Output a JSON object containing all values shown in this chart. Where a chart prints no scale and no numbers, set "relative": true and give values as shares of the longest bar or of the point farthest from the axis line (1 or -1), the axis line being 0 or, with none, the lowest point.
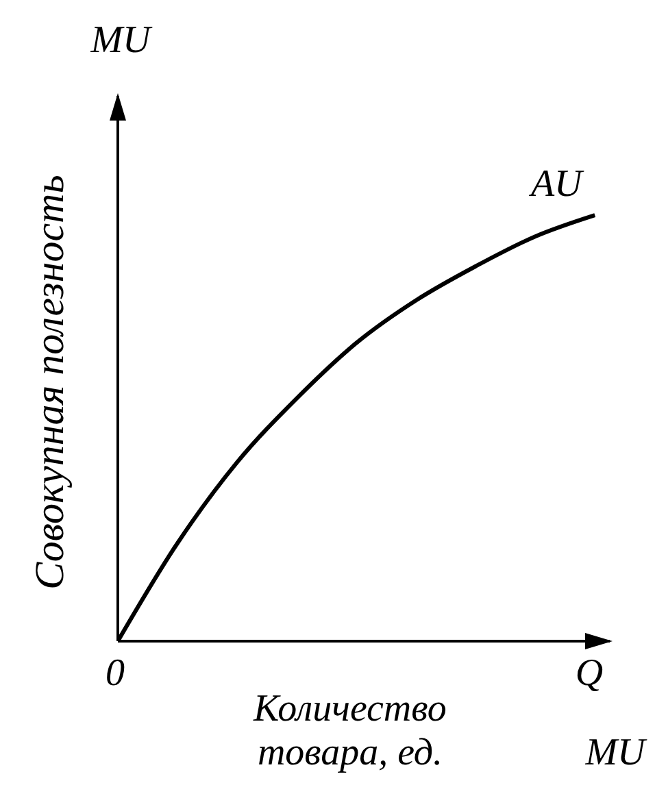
{
  "chart_data": {
    "type": "line",
    "relative": true,
    "ylabel": "Совокупная полезность",
    "xlabel": "Количество товара, ед.",
    "categories": [
      null,
      null,
      null,
      null,
      null,
      null,
      null,
      null,
      null
    ],
    "series": [
      {
        "name": "AU",
        "color": "#000000",
        "values": [
          0,
          0.23,
          0.42,
          0.57,
          0.7,
          0.8,
          0.88,
          0.95,
          1
        ]
      }
    ],
    "annotations": [
      "MU",
      "0",
      "Q",
      "MU"
    ],
    "marker": "none",
    "line_style": "solid",
    "grid": false,
    "legend": false
  }
}
